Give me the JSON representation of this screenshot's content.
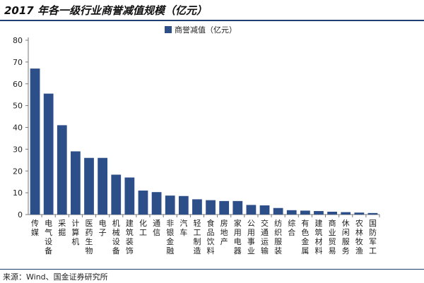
{
  "title": "2017 年各一级行业商誉减值规模（亿元）",
  "source": "来源：Wind、国金证券研究所",
  "colors": {
    "bar": "#2c4f8a",
    "axis": "#777777",
    "rule": "#1f3f73"
  },
  "chart_data": {
    "type": "bar",
    "title": "2017 年各一级行业商誉减值规模（亿元）",
    "xlabel": "",
    "ylabel": "",
    "ylim": [
      0,
      80
    ],
    "yticks": [
      0,
      10,
      20,
      30,
      40,
      50,
      60,
      70,
      80
    ],
    "grid": false,
    "legend_position": "top-center",
    "categories": [
      "传媒",
      "电气设备",
      "采掘",
      "计算机",
      "医药生物",
      "电子",
      "机械设备",
      "建筑装饰",
      "化工",
      "通信",
      "非银金融",
      "汽车",
      "轻工制造",
      "食品饮料",
      "房地产",
      "家用电器",
      "公用事业",
      "交通运输",
      "纺织服装",
      "综合",
      "有色金属",
      "建筑材料",
      "商业贸易",
      "休闲服务",
      "农林牧渔",
      "国防军工"
    ],
    "series": [
      {
        "name": "商誉减值（亿元）",
        "values": [
          67,
          55.5,
          41,
          29,
          26,
          26,
          18.3,
          17,
          11,
          10.3,
          8.7,
          8.5,
          7,
          6.6,
          6.2,
          6.2,
          4.4,
          4.2,
          3,
          2,
          1.8,
          1.6,
          1.3,
          1.1,
          0.9,
          0.7
        ]
      }
    ]
  }
}
